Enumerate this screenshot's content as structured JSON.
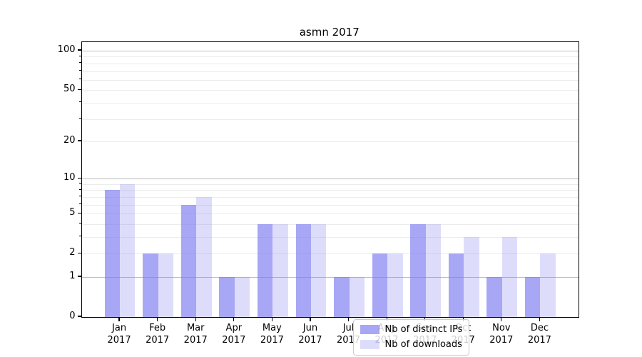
{
  "title": "asmn 2017",
  "chart_data": {
    "type": "bar",
    "title": "asmn 2017",
    "categories": [
      "Jan",
      "Feb",
      "Mar",
      "Apr",
      "May",
      "Jun",
      "Jul",
      "Aug",
      "Sep",
      "Oct",
      "Nov",
      "Dec"
    ],
    "year_label": "2017",
    "series": [
      {
        "name": "Nb of distinct IPs",
        "color": "rgba(120,120,240,0.65)",
        "color_hex": "#a8a8f5",
        "values": [
          8,
          2,
          6,
          1,
          4,
          4,
          1,
          2,
          4,
          2,
          1,
          1
        ]
      },
      {
        "name": "Nb of downloads",
        "color": "rgba(120,120,240,0.25)",
        "color_hex": "#ddddfb",
        "values": [
          9,
          2,
          7,
          1,
          4,
          4,
          1,
          2,
          4,
          3,
          3,
          2
        ]
      }
    ],
    "xlabel": "",
    "ylabel": "",
    "yscale": "log1p",
    "ylim": [
      0,
      117
    ],
    "yticks": [
      100,
      50,
      20,
      10,
      5,
      2,
      1,
      0
    ],
    "ytick_labels": [
      "100",
      "50",
      "20",
      "10",
      "5",
      "2",
      "1",
      "0"
    ],
    "major_gridlines": [
      1,
      10,
      100
    ],
    "minor_gridlines": [
      2,
      3,
      4,
      5,
      6,
      7,
      8,
      9,
      20,
      30,
      40,
      50,
      60,
      70,
      80,
      90
    ],
    "grid": true,
    "legend_position": "inside-lower-middle"
  },
  "colors": {
    "bar_primary": "rgba(120,120,240,0.65)",
    "bar_secondary": "rgba(120,120,240,0.25)",
    "major_grid": "#bdbdbd",
    "minor_grid": "#ececec",
    "spine": "#000000",
    "background": "#ffffff"
  }
}
